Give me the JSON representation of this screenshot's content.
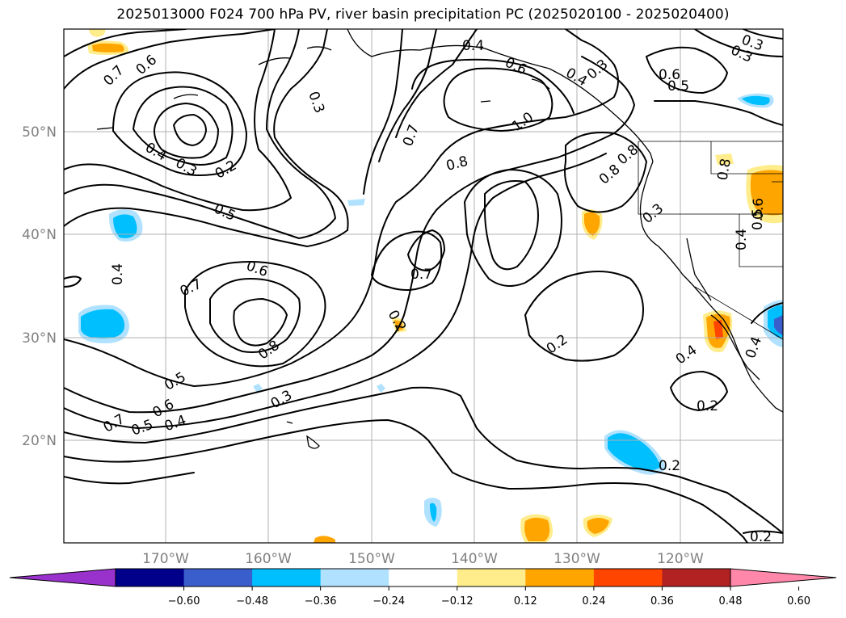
{
  "title": "2025013000 F024 700 hPa PV, river basin precipitation PC (2025020100 - 2025020400)",
  "map": {
    "lat_labels": [
      "50°N",
      "40°N",
      "30°N",
      "20°N"
    ],
    "lon_labels": [
      "170°W",
      "160°W",
      "150°W",
      "140°W",
      "130°W",
      "120°W"
    ]
  },
  "contour_labels": [
    "0.7",
    "0.6",
    "0.4",
    "0.4",
    "0.6",
    "0.3",
    "0.3",
    "0.2",
    "0.3",
    "0.3",
    "0.6",
    "0.5",
    "0.4",
    "0.3",
    "0.2",
    "0.5",
    "0.6",
    "0.7",
    "0.8",
    "0.7",
    "1.0",
    "0.8",
    "0.8",
    "0.7",
    "0.4",
    "0.6",
    "0.7",
    "0.8",
    "0.5",
    "0.6",
    "0.5",
    "0.4",
    "0.3",
    "0.2",
    "0.4",
    "0.4",
    "0.2",
    "0.2",
    "0.3",
    "0.4",
    "0.5",
    "0.8",
    "0.2"
  ],
  "colorbar": {
    "ticks": [
      "−0.60",
      "−0.48",
      "−0.36",
      "−0.24",
      "−0.12",
      "0.12",
      "0.24",
      "0.36",
      "0.48",
      "0.60"
    ],
    "colors": [
      "#9932cc",
      "#00008b",
      "#3a5fcd",
      "#00bfff",
      "#b0e2ff",
      "#ffffff",
      "#ffec8b",
      "#ffa500",
      "#ff4500",
      "#b22222",
      "#ff88aa"
    ]
  }
}
